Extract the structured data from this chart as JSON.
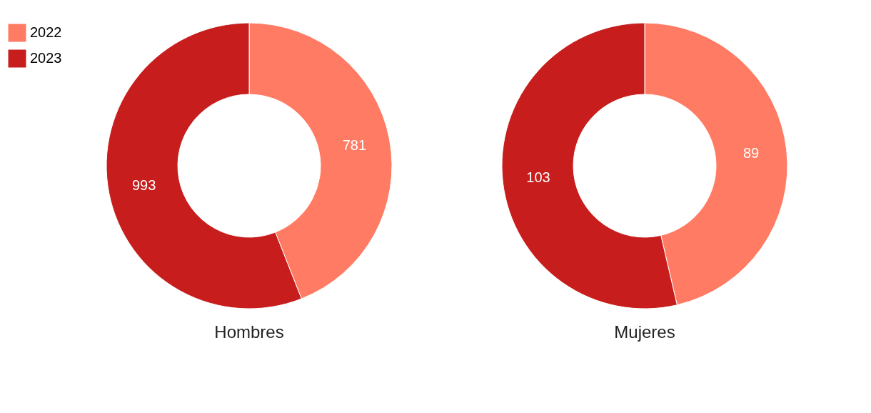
{
  "chart_data": {
    "type": "donut",
    "categories": [
      "2022",
      "2023"
    ],
    "colors": [
      "#ff7b63",
      "#c71e1d"
    ],
    "data_labels": true,
    "legend": "top left",
    "series": [
      {
        "name": "Hombres",
        "values": [
          781,
          993
        ]
      },
      {
        "name": "Mujeres",
        "values": [
          89,
          103
        ]
      }
    ]
  }
}
